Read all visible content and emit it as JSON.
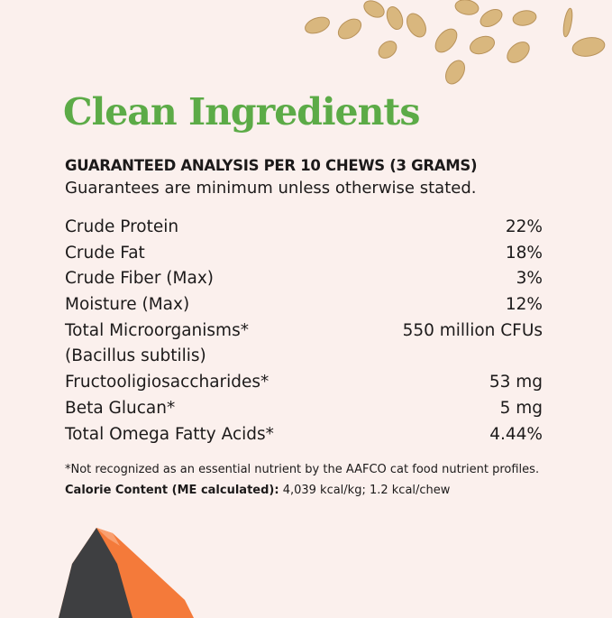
{
  "title": "Clean Ingredients",
  "heading": "GUARANTEED ANALYSIS PER 10 CHEWS (3 GRAMS)",
  "subheading": "Guarantees are minimum unless otherwise stated.",
  "rows": [
    {
      "label": "Crude Protein",
      "value": "22%"
    },
    {
      "label": "Crude Fat",
      "value": "18%"
    },
    {
      "label": "Crude Fiber (Max)",
      "value": "3%"
    },
    {
      "label": "Moisture (Max)",
      "value": "12%"
    },
    {
      "label": "Total Microorganisms*",
      "value": "550 million CFUs"
    },
    {
      "label": "(Bacillus subtilis)",
      "value": ""
    },
    {
      "label": "Fructooligiosaccharides*",
      "value": "53 mg"
    },
    {
      "label": "Beta Glucan*",
      "value": "5 mg"
    },
    {
      "label": "Total Omega Fatty Acids*",
      "value": "4.44%"
    }
  ],
  "footnote": "*Not recognized as an essential nutrient by the AAFCO cat food nutrient profiles.",
  "calorie": {
    "label": "Calorie Content (ME calculated):",
    "value": " 4,039 kcal/kg; 1.2 kcal/chew"
  },
  "colors": {
    "background": "#fbf0ed",
    "title": "#5cab47",
    "oat": "#d9b77e",
    "salmon": "#f47a3a",
    "salmon_skin": "#3e3f41"
  },
  "images": [
    "oats",
    "salmon-fillet"
  ]
}
